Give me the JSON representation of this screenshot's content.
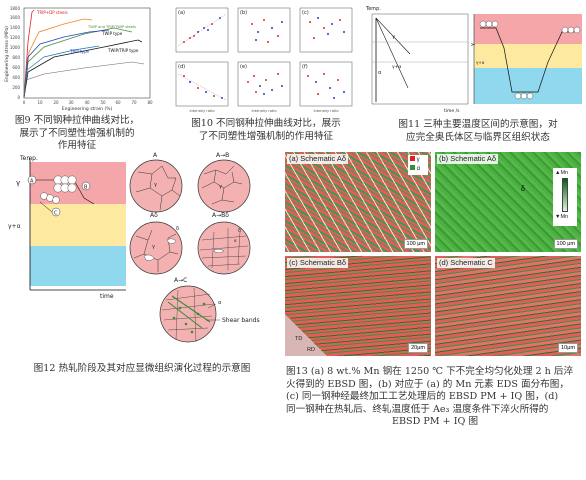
{
  "fig9": {
    "y_label": "Engineering stress (MPa)",
    "x_label": "Engineering strain (%)",
    "y_ticks": [
      "0",
      "200",
      "400",
      "600",
      "800",
      "1000",
      "1200",
      "1400",
      "1600",
      "1800"
    ],
    "x_ticks": [
      "0",
      "10",
      "20",
      "30",
      "40",
      "50",
      "60",
      "70",
      "80"
    ],
    "legend": {
      "trip_dp": "TRIP+DP steels",
      "twip_bip": "TWIP and TRIP/TWIP steels",
      "twip_type": "TWIP type",
      "trip_type": "TRIP type",
      "twip_trip_type": "TWIP/TRIP type"
    },
    "caption_1": "图9 不同钢种拉伸曲线对比，",
    "caption_2": "展示了不同塑性增强机制的",
    "caption_3": "作用特征"
  },
  "fig10": {
    "panel_labels": [
      "(a)",
      "(b)",
      "(c)",
      "(d)",
      "(e)",
      "(f)"
    ],
    "x_label": "Intensity ratio",
    "caption_1": "图10 不同钢种拉伸曲线对比，展示",
    "caption_2": "了不同塑性增强机制的作用特征"
  },
  "fig11": {
    "temp_label": "Temp.",
    "time_label": "time /s",
    "gamma": "γ",
    "gamma_alpha": "γ+α",
    "alpha": "α",
    "region_1": "γ",
    "region_2": "γ+α",
    "caption_1": "图11 三种主要温度区间的示意图，对",
    "caption_2": "应完全奥氏体区与临界区组织状态"
  },
  "fig12": {
    "temp_label": "Temp.",
    "time_label": "time",
    "gamma_label": "γ",
    "gamma_alpha_label": "γ+α",
    "marker_a": "A",
    "marker_b": "B",
    "marker_c": "C",
    "panel_a": "A",
    "panel_ab": "A→B",
    "panel_adelta": "Aδ",
    "panel_abdelta": "A→Bδ",
    "panel_ac": "A→C",
    "gamma_symbol": "γ",
    "alpha_symbol": "α",
    "delta_symbol": "δ",
    "shear_bands": "Shear bands",
    "caption": "图12 热轧阶段及其对应显微组织演化过程的示意图"
  },
  "fig13": {
    "panel_a_label": "(a) Schematic Aδ",
    "panel_b_label": "(b) Schematic Aδ",
    "panel_c_label": "(c) Schematic Bδ",
    "panel_d_label": "(d) Schematic C",
    "legend_gamma": "γ",
    "legend_alpha": "α",
    "mn_high": "▲Mn",
    "mn_low": "▼Mn",
    "scale_a": "100 μm",
    "scale_b": "100 μm",
    "scale_c": "20μm",
    "scale_d": "10μm",
    "delta": "δ",
    "axis_td": "TD",
    "axis_rd": "RD",
    "caption_1": "图13 (a) 8 wt.% Mn 钢在 1250 ℃ 下不完全均匀化处理 2 h 后淬",
    "caption_2": "火得到的 EBSD 图，(b) 对应于 (a) 的 Mn 元素 EDS 面分布图，",
    "caption_3": "(c) 同一钢种经最终加工工艺处理后的 EBSD PM + IQ 图，(d)",
    "caption_4": "同一钢种在热轧后、终轧温度低于 Ae₃ 温度条件下淬火所得的",
    "caption_5": "EBSD PM + IQ 图"
  },
  "colors": {
    "pink": "#f5a6a8",
    "yellow": "#fdeaa0",
    "cyan": "#8fd8ee",
    "grain_fill": "#f4b1b1",
    "green": "#2f8f3a"
  }
}
